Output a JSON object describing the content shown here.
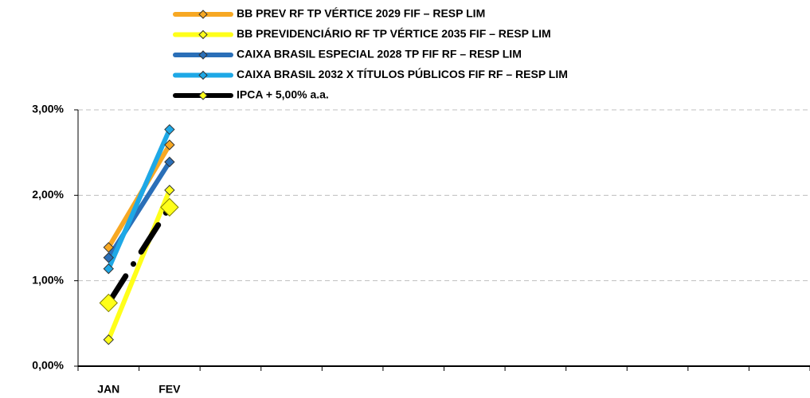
{
  "chart_data": {
    "type": "line",
    "categories": [
      "JAN",
      "FEV",
      null,
      null,
      null,
      null,
      null,
      null,
      null,
      null,
      null,
      null
    ],
    "series": [
      {
        "name": "BB PREV RF TP VÉRTICE 2029 FIF – RESP LIM",
        "color": "#f7a823",
        "values": [
          1.39,
          2.59,
          null,
          null,
          null,
          null,
          null,
          null,
          null,
          null,
          null,
          null
        ]
      },
      {
        "name": "BB PREVIDENCIÁRIO RF TP VÉRTICE 2035 FIF – RESP LIM",
        "color": "#ffff1a",
        "values": [
          0.31,
          2.06,
          null,
          null,
          null,
          null,
          null,
          null,
          null,
          null,
          null,
          null
        ]
      },
      {
        "name": "CAIXA BRASIL ESPECIAL 2028 TP FIF RF – RESP LIM",
        "color": "#2a6fb8",
        "values": [
          1.27,
          2.39,
          null,
          null,
          null,
          null,
          null,
          null,
          null,
          null,
          null,
          null
        ]
      },
      {
        "name": "CAIXA BRASIL 2032 X TÍTULOS PÚBLICOS FIF RF – RESP LIM",
        "color": "#1ea8e6",
        "values": [
          1.14,
          2.77,
          null,
          null,
          null,
          null,
          null,
          null,
          null,
          null,
          null,
          null
        ]
      },
      {
        "name": "IPCA + 5,00% a.a.",
        "color": "#000000",
        "values": [
          0.74,
          1.86,
          null,
          null,
          null,
          null,
          null,
          null,
          null,
          null,
          null,
          null
        ]
      }
    ],
    "ylim": [
      0,
      3
    ],
    "yticks": [
      {
        "value": 0,
        "label": "0,00%"
      },
      {
        "value": 1,
        "label": "1,00%"
      },
      {
        "value": 2,
        "label": "2,00%"
      },
      {
        "value": 3,
        "label": "3,00%"
      }
    ],
    "grid": true
  }
}
